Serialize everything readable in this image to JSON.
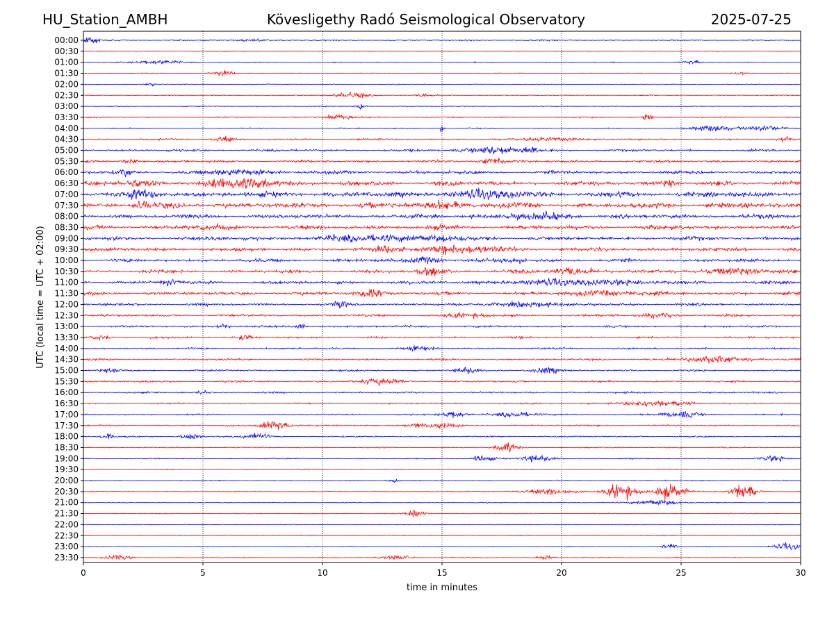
{
  "header": {
    "station": "HU_Station_AMBH",
    "observatory": "Kövesligethy Radó Seismological Observatory",
    "date": "2025-07-25"
  },
  "chart_data": {
    "type": "line",
    "title": "Kövesligethy Radó Seismological Observatory",
    "xlabel": "time in minutes",
    "ylabel": "UTC (local time = UTC + 02:00)",
    "xlim": [
      0,
      30
    ],
    "x_ticks": [
      0,
      5,
      10,
      15,
      20,
      25,
      30
    ],
    "grid": "vertical dotted",
    "row_labels": [
      "00:00",
      "00:30",
      "01:00",
      "01:30",
      "02:00",
      "02:30",
      "03:00",
      "03:30",
      "04:00",
      "04:30",
      "05:00",
      "05:30",
      "06:00",
      "06:30",
      "07:00",
      "07:30",
      "08:00",
      "08:30",
      "09:00",
      "09:30",
      "10:00",
      "10:30",
      "11:00",
      "11:30",
      "12:00",
      "12:30",
      "13:00",
      "13:30",
      "14:00",
      "14:30",
      "15:00",
      "15:30",
      "16:00",
      "16:30",
      "17:00",
      "17:30",
      "18:00",
      "18:30",
      "19:00",
      "19:30",
      "20:00",
      "20:30",
      "21:00",
      "21:30",
      "22:00",
      "22:30",
      "23:00",
      "23:30"
    ],
    "series_colors": [
      "#0000ff",
      "#ff0000"
    ],
    "base_amplitude": [
      0.6,
      0.35,
      0.45,
      0.35,
      0.35,
      0.4,
      0.35,
      0.55,
      0.5,
      0.8,
      1.1,
      1.2,
      1.6,
      2.2,
      2.6,
      2.6,
      2.0,
      2.0,
      1.9,
      1.8,
      1.6,
      1.6,
      1.5,
      1.5,
      1.3,
      1.1,
      1.0,
      1.0,
      0.9,
      0.9,
      0.85,
      0.85,
      0.8,
      0.75,
      0.7,
      0.7,
      0.65,
      0.55,
      0.5,
      0.45,
      0.45,
      0.45,
      0.4,
      0.4,
      0.35,
      0.35,
      0.4,
      0.45
    ],
    "bursts": [
      [
        0,
        0.3,
        0.3,
        4
      ],
      [
        0,
        7,
        1,
        0.8
      ],
      [
        2,
        3.2,
        0.9,
        2
      ],
      [
        2,
        25.5,
        0.4,
        1.5
      ],
      [
        3,
        5.8,
        0.5,
        2.5
      ],
      [
        3,
        27.5,
        0.3,
        1.2
      ],
      [
        4,
        2.8,
        0.2,
        2
      ],
      [
        5,
        11.2,
        0.7,
        3
      ],
      [
        5,
        14.3,
        0.3,
        2
      ],
      [
        6,
        11.6,
        0.2,
        3
      ],
      [
        7,
        10.6,
        0.6,
        3
      ],
      [
        7,
        23.6,
        0.2,
        3.5
      ],
      [
        8,
        15.0,
        0.1,
        3
      ],
      [
        8,
        26.3,
        0.8,
        3
      ],
      [
        8,
        28.5,
        0.9,
        2.5
      ],
      [
        9,
        5.9,
        0.4,
        3
      ],
      [
        9,
        19.5,
        0.9,
        2.5
      ],
      [
        9,
        29.3,
        0.3,
        3
      ],
      [
        10,
        17.2,
        1.3,
        3.5
      ],
      [
        10,
        18.8,
        0.4,
        2
      ],
      [
        11,
        17.2,
        0.6,
        3
      ],
      [
        11,
        2.0,
        0.4,
        2
      ],
      [
        12,
        1.7,
        0.3,
        4
      ],
      [
        12,
        6.5,
        1.2,
        2.5
      ],
      [
        13,
        6.6,
        1.5,
        4
      ],
      [
        13,
        2.3,
        0.6,
        3
      ],
      [
        13,
        24.5,
        0.3,
        3
      ],
      [
        14,
        17.0,
        2.0,
        2.5
      ],
      [
        14,
        2.5,
        0.8,
        2.5
      ],
      [
        15,
        15.0,
        1.5,
        2.2
      ],
      [
        15,
        2.4,
        0.3,
        3
      ],
      [
        16,
        19.0,
        1.5,
        2
      ],
      [
        17,
        5.5,
        0.6,
        1.8
      ],
      [
        18,
        12.3,
        2.0,
        2.5
      ],
      [
        18,
        15.0,
        1.0,
        2
      ],
      [
        19,
        15.8,
        1.8,
        2.8
      ],
      [
        19,
        12.8,
        0.6,
        2.5
      ],
      [
        20,
        14.4,
        0.6,
        3
      ],
      [
        20,
        18.0,
        0.4,
        2.5
      ],
      [
        21,
        14.6,
        0.6,
        3.5
      ],
      [
        21,
        20.5,
        1.0,
        3
      ],
      [
        21,
        27.5,
        2.0,
        2.2
      ],
      [
        22,
        21.0,
        3.0,
        2.5
      ],
      [
        22,
        3.6,
        0.4,
        2.5
      ],
      [
        23,
        12.0,
        0.6,
        4
      ],
      [
        23,
        22.0,
        2.0,
        2
      ],
      [
        24,
        10.8,
        0.3,
        3.5
      ],
      [
        24,
        18.5,
        1.0,
        2.5
      ],
      [
        25,
        24.0,
        0.7,
        2.5
      ],
      [
        25,
        16.0,
        1.0,
        1.8
      ],
      [
        26,
        5.8,
        0.3,
        2.5
      ],
      [
        26,
        9.1,
        0.2,
        2.5
      ],
      [
        27,
        6.8,
        0.3,
        3
      ],
      [
        27,
        0.8,
        0.4,
        2
      ],
      [
        28,
        14.0,
        0.6,
        1.8
      ],
      [
        29,
        26.5,
        1.5,
        3
      ],
      [
        30,
        16.0,
        0.4,
        3.5
      ],
      [
        30,
        19.3,
        0.6,
        3
      ],
      [
        30,
        1.2,
        0.5,
        2
      ],
      [
        31,
        12.5,
        1.0,
        2.5
      ],
      [
        32,
        5.0,
        0.2,
        2
      ],
      [
        33,
        24.0,
        1.5,
        2.5
      ],
      [
        34,
        15.5,
        0.5,
        3
      ],
      [
        34,
        18.0,
        0.8,
        2.5
      ],
      [
        34,
        25.0,
        0.9,
        2.5
      ],
      [
        35,
        8.0,
        0.6,
        4.5
      ],
      [
        35,
        14.5,
        1.0,
        2.5
      ],
      [
        36,
        4.5,
        0.4,
        3
      ],
      [
        36,
        7.2,
        0.5,
        3.5
      ],
      [
        36,
        1.0,
        0.3,
        2.5
      ],
      [
        37,
        17.7,
        0.4,
        5
      ],
      [
        38,
        16.7,
        0.4,
        4
      ],
      [
        38,
        19.0,
        0.6,
        3.5
      ],
      [
        38,
        28.9,
        0.5,
        3
      ],
      [
        40,
        13.0,
        0.3,
        2
      ],
      [
        41,
        22.5,
        0.6,
        8
      ],
      [
        41,
        24.5,
        0.7,
        6
      ],
      [
        41,
        27.6,
        0.5,
        9
      ],
      [
        41,
        19.5,
        1.0,
        3
      ],
      [
        42,
        24.0,
        0.9,
        3
      ],
      [
        43,
        13.9,
        0.4,
        3.5
      ],
      [
        46,
        24.5,
        0.3,
        2.5
      ],
      [
        46,
        29.5,
        0.6,
        3
      ],
      [
        47,
        1.5,
        0.5,
        2.5
      ],
      [
        47,
        13.2,
        0.5,
        2.5
      ],
      [
        47,
        19.3,
        0.3,
        2.5
      ]
    ]
  }
}
